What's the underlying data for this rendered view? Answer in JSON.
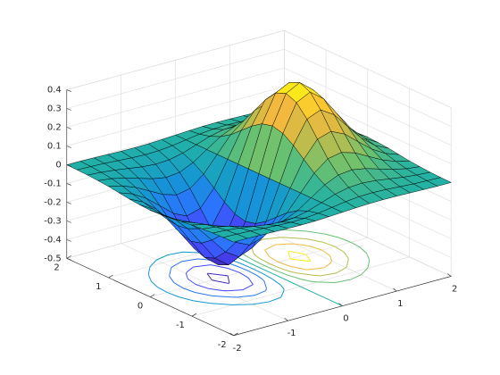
{
  "chart_data": {
    "type": "surface",
    "x": [
      -2,
      -1.75,
      -1.5,
      -1.25,
      -1,
      -0.75,
      -0.5,
      -0.25,
      0,
      0.25,
      0.5,
      0.75,
      1,
      1.25,
      1.5,
      1.75,
      2
    ],
    "y": [
      -2,
      -1.75,
      -1.5,
      -1.25,
      -1,
      -0.75,
      -0.5,
      -0.25,
      0,
      0.25,
      0.5,
      0.75,
      1,
      1.25,
      1.5,
      1.75,
      2
    ],
    "z": [
      [
        -0.001,
        -0.001,
        -0.003,
        -0.005,
        -0.007,
        -0.008,
        -0.007,
        -0.004,
        0,
        0.004,
        0.007,
        0.008,
        0.007,
        0.005,
        0.003,
        0.001,
        0.001
      ],
      [
        -0.002,
        -0.004,
        -0.007,
        -0.012,
        -0.017,
        -0.02,
        -0.018,
        -0.011,
        0,
        0.011,
        0.018,
        0.02,
        0.017,
        0.012,
        0.007,
        0.004,
        0.002
      ],
      [
        -0.004,
        -0.009,
        -0.017,
        -0.028,
        -0.039,
        -0.045,
        -0.041,
        -0.025,
        0,
        0.025,
        0.041,
        0.045,
        0.039,
        0.028,
        0.017,
        0.009,
        0.004
      ],
      [
        -0.008,
        -0.017,
        -0.033,
        -0.055,
        -0.077,
        -0.09,
        -0.082,
        -0.049,
        0,
        0.049,
        0.082,
        0.09,
        0.077,
        0.055,
        0.033,
        0.017,
        0.008
      ],
      [
        -0.013,
        -0.03,
        -0.058,
        -0.096,
        -0.135,
        -0.157,
        -0.143,
        -0.086,
        0,
        0.086,
        0.143,
        0.157,
        0.135,
        0.096,
        0.058,
        0.03,
        0.013
      ],
      [
        -0.021,
        -0.047,
        -0.09,
        -0.149,
        -0.21,
        -0.244,
        -0.222,
        -0.134,
        0,
        0.134,
        0.222,
        0.244,
        0.21,
        0.149,
        0.09,
        0.047,
        0.021
      ],
      [
        -0.029,
        -0.064,
        -0.123,
        -0.204,
        -0.287,
        -0.333,
        -0.303,
        -0.183,
        0,
        0.183,
        0.303,
        0.333,
        0.287,
        0.204,
        0.123,
        0.064,
        0.029
      ],
      [
        -0.034,
        -0.077,
        -0.149,
        -0.246,
        -0.346,
        -0.402,
        -0.366,
        -0.221,
        0,
        0.221,
        0.366,
        0.402,
        0.346,
        0.246,
        0.149,
        0.077,
        0.034
      ],
      [
        -0.037,
        -0.082,
        -0.158,
        -0.262,
        -0.368,
        -0.427,
        -0.389,
        -0.235,
        0,
        0.235,
        0.389,
        0.427,
        0.368,
        0.262,
        0.158,
        0.082,
        0.037
      ],
      [
        -0.034,
        -0.077,
        -0.149,
        -0.246,
        -0.346,
        -0.402,
        -0.366,
        -0.221,
        0,
        0.221,
        0.366,
        0.402,
        0.346,
        0.246,
        0.149,
        0.077,
        0.034
      ],
      [
        -0.029,
        -0.064,
        -0.123,
        -0.204,
        -0.287,
        -0.333,
        -0.303,
        -0.183,
        0,
        0.183,
        0.303,
        0.333,
        0.287,
        0.204,
        0.123,
        0.064,
        0.029
      ],
      [
        -0.021,
        -0.047,
        -0.09,
        -0.149,
        -0.21,
        -0.244,
        -0.222,
        -0.134,
        0,
        0.134,
        0.222,
        0.244,
        0.21,
        0.149,
        0.09,
        0.047,
        0.021
      ],
      [
        -0.013,
        -0.03,
        -0.058,
        -0.096,
        -0.135,
        -0.157,
        -0.143,
        -0.086,
        0,
        0.086,
        0.143,
        0.157,
        0.135,
        0.096,
        0.058,
        0.03,
        0.013
      ],
      [
        -0.008,
        -0.017,
        -0.033,
        -0.055,
        -0.077,
        -0.09,
        -0.082,
        -0.049,
        0,
        0.049,
        0.082,
        0.09,
        0.077,
        0.055,
        0.033,
        0.017,
        0.008
      ],
      [
        -0.004,
        -0.009,
        -0.017,
        -0.028,
        -0.039,
        -0.045,
        -0.041,
        -0.025,
        0,
        0.025,
        0.041,
        0.045,
        0.039,
        0.028,
        0.017,
        0.009,
        0.004
      ],
      [
        -0.002,
        -0.004,
        -0.007,
        -0.012,
        -0.017,
        -0.02,
        -0.018,
        -0.011,
        0,
        0.011,
        0.018,
        0.02,
        0.017,
        0.012,
        0.007,
        0.004,
        0.002
      ],
      [
        -0.001,
        -0.001,
        -0.003,
        -0.005,
        -0.007,
        -0.008,
        -0.007,
        -0.004,
        0,
        0.004,
        0.007,
        0.008,
        0.007,
        0.005,
        0.003,
        0.001,
        0.001
      ]
    ],
    "xlim": [
      -2,
      2
    ],
    "ylim": [
      -2,
      2
    ],
    "zlim": [
      -0.5,
      0.4
    ],
    "xticks": [
      -2,
      -1,
      0,
      1,
      2
    ],
    "yticks": [
      -2,
      -1,
      0,
      1,
      2
    ],
    "zticks": [
      -0.5,
      -0.4,
      -0.3,
      -0.2,
      -0.1,
      0,
      0.1,
      0.2,
      0.3,
      0.4
    ],
    "grid": true,
    "contours": true,
    "colormap": "parula"
  }
}
